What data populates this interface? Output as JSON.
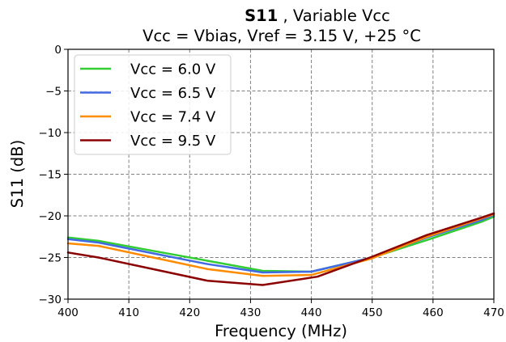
{
  "chart_data": {
    "type": "line",
    "title_bold": "S11",
    "title_rest": " , Variable Vcc",
    "subtitle": "Vcc = Vbias, Vref = 3.15 V, +25 °C",
    "xlabel": "Frequency (MHz)",
    "ylabel": "S11 (dB)",
    "xlim": [
      400,
      470
    ],
    "ylim": [
      -30,
      0
    ],
    "xticks": [
      "400",
      "410",
      "420",
      "430",
      "440",
      "450",
      "460",
      "470"
    ],
    "yticks": [
      "0",
      "−5",
      "−10",
      "−15",
      "−20",
      "−25",
      "−30"
    ],
    "grid": true,
    "legend_position": "top-left",
    "series": [
      {
        "name": "Vcc = 6.0 V",
        "color": "#32cd32",
        "x": [
          400,
          405,
          414,
          423,
          432,
          440,
          450,
          459,
          468,
          470
        ],
        "y": [
          -22.6,
          -23.0,
          -24.2,
          -25.4,
          -26.6,
          -26.7,
          -25.0,
          -22.9,
          -20.7,
          -20.1
        ]
      },
      {
        "name": "Vcc = 6.5 V",
        "color": "#4169e1",
        "x": [
          400,
          405,
          414,
          423,
          432,
          440,
          450,
          459,
          468,
          470
        ],
        "y": [
          -22.8,
          -23.2,
          -24.5,
          -25.8,
          -26.8,
          -26.7,
          -25.0,
          -22.6,
          -20.5,
          -19.9
        ]
      },
      {
        "name": "Vcc = 7.4 V",
        "color": "#ff8c00",
        "x": [
          400,
          405,
          414,
          423,
          432,
          440,
          450,
          459,
          468,
          470
        ],
        "y": [
          -23.3,
          -23.6,
          -25.0,
          -26.4,
          -27.2,
          -27.1,
          -25.1,
          -22.5,
          -20.3,
          -19.8
        ]
      },
      {
        "name": "Vcc = 9.5 V",
        "color": "#8b0000",
        "x": [
          400,
          405,
          414,
          423,
          432,
          441,
          450,
          459,
          468,
          470
        ],
        "y": [
          -24.4,
          -25.0,
          -26.4,
          -27.8,
          -28.3,
          -27.3,
          -24.9,
          -22.3,
          -20.2,
          -19.7
        ]
      }
    ]
  }
}
